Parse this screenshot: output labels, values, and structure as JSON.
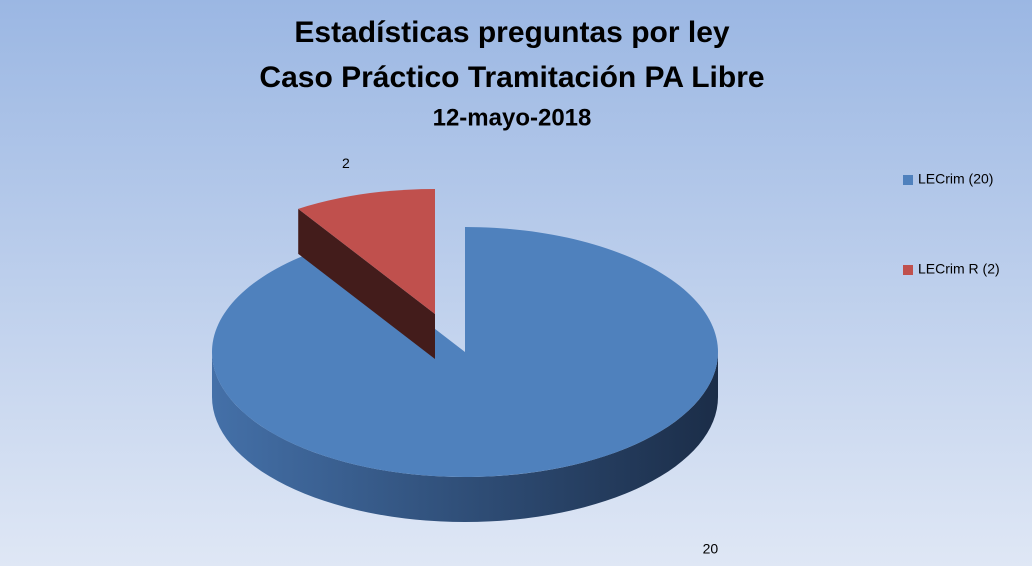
{
  "chart_data": {
    "type": "pie3d",
    "title": "Estadísticas preguntas por ley",
    "subtitle": "Caso Práctico Tramitación PA Libre",
    "date": "12-mayo-2018",
    "categories": [
      "LECrim (20)",
      "LECrim R (2)"
    ],
    "values": [
      20,
      2
    ],
    "colors": [
      "#4f81bd",
      "#c0504d"
    ],
    "legend": "right"
  }
}
